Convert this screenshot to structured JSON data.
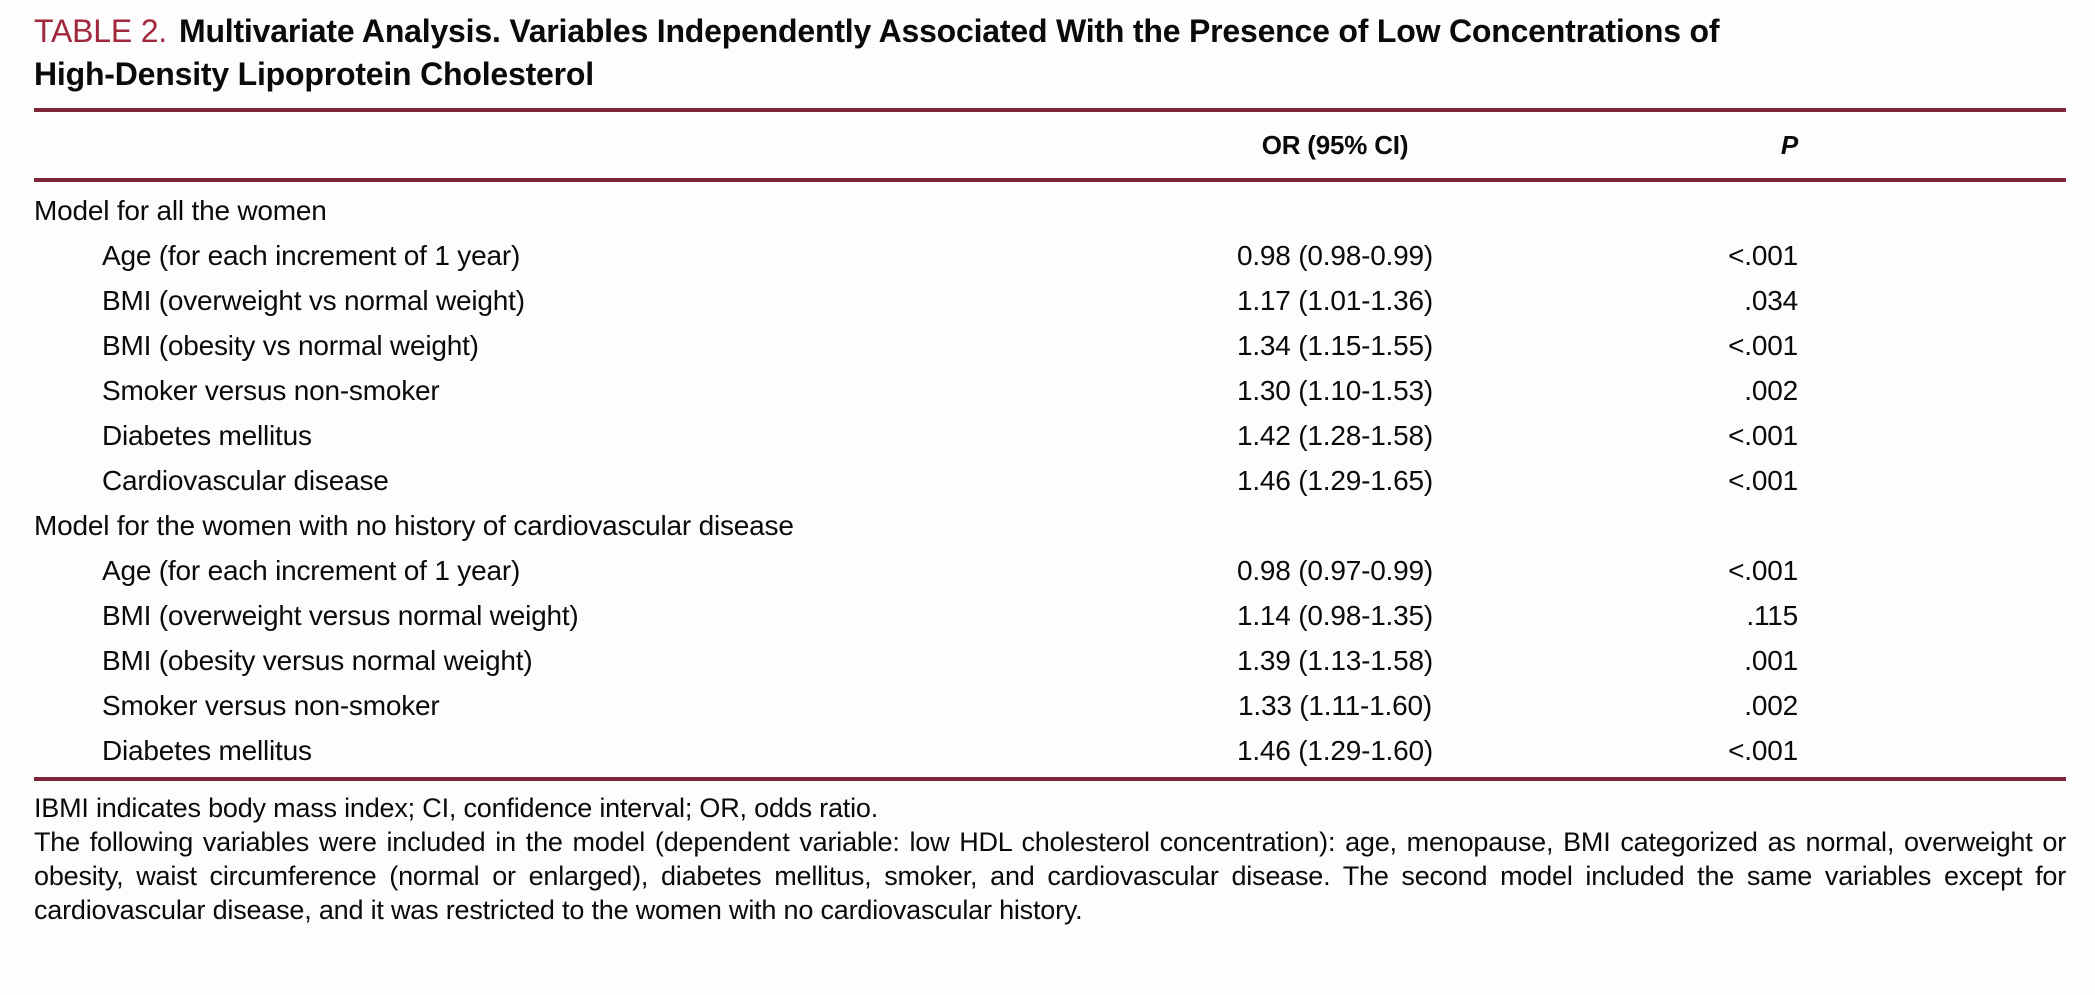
{
  "colors": {
    "accent_label": "#a1283c",
    "rule": "#7e2539",
    "text": "#0a0a0a",
    "background": "#fdfdfd"
  },
  "title": {
    "label": "TABLE 2.",
    "line1": "Multivariate Analysis. Variables Independently Associated With the Presence of Low Concentrations of",
    "line2": "High-Density Lipoprotein Cholesterol"
  },
  "columns": {
    "variable": "",
    "or": "OR (95% CI)",
    "p": "P"
  },
  "rows": [
    {
      "label": "Model for all the women",
      "indent": 0,
      "or": "",
      "p": ""
    },
    {
      "label": "Age (for each increment of 1 year)",
      "indent": 1,
      "or": "0.98 (0.98-0.99)",
      "p": "<.001"
    },
    {
      "label": "BMI (overweight vs normal weight)",
      "indent": 1,
      "or": "1.17 (1.01-1.36)",
      "p": ".034"
    },
    {
      "label": "BMI (obesity vs normal weight)",
      "indent": 1,
      "or": "1.34 (1.15-1.55)",
      "p": "<.001"
    },
    {
      "label": "Smoker versus non-smoker",
      "indent": 1,
      "or": "1.30 (1.10-1.53)",
      "p": ".002"
    },
    {
      "label": "Diabetes mellitus",
      "indent": 1,
      "or": "1.42 (1.28-1.58)",
      "p": "<.001"
    },
    {
      "label": "Cardiovascular disease",
      "indent": 1,
      "or": "1.46 (1.29-1.65)",
      "p": "<.001"
    },
    {
      "label": "Model for the women with no history of cardiovascular disease",
      "indent": 0,
      "or": "",
      "p": ""
    },
    {
      "label": "Age (for each increment of 1 year)",
      "indent": 1,
      "or": "0.98 (0.97-0.99)",
      "p": "<.001"
    },
    {
      "label": "BMI (overweight versus normal weight)",
      "indent": 1,
      "or": "1.14 (0.98-1.35)",
      "p": ".115"
    },
    {
      "label": "BMI (obesity versus normal weight)",
      "indent": 1,
      "or": "1.39 (1.13-1.58)",
      "p": ".001"
    },
    {
      "label": "Smoker versus non-smoker",
      "indent": 1,
      "or": "1.33 (1.11-1.60)",
      "p": ".002"
    },
    {
      "label": "Diabetes mellitus",
      "indent": 1,
      "or": "1.46 (1.29-1.60)",
      "p": "<.001"
    }
  ],
  "footnotes": {
    "abbreviations": "IBMI indicates body mass index; CI, confidence interval; OR, odds ratio.",
    "note": "The following variables were included in the model (dependent variable: low HDL cholesterol concentration): age, menopause, BMI categorized as normal, overweight or obesity, waist circumference (normal or enlarged), diabetes mellitus, smoker, and cardiovascular disease. The second model included the same variables except for cardiovascular disease, and it was restricted to the women with no cardiovascular history."
  }
}
